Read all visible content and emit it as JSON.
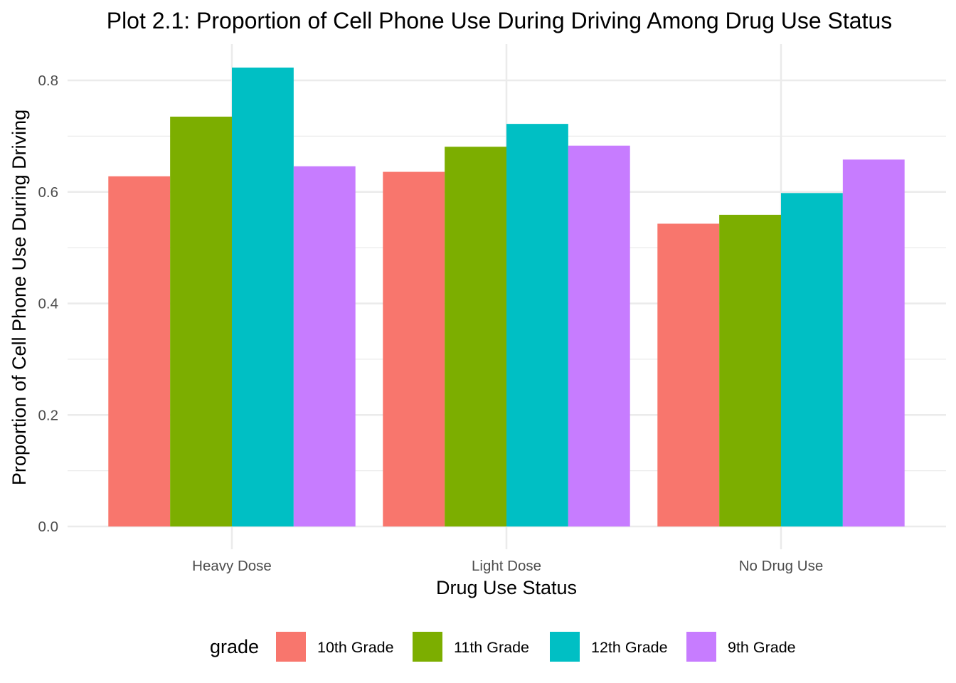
{
  "chart_data": {
    "type": "bar",
    "title": "Plot 2.1: Proportion of Cell Phone Use During Driving Among Drug Use Status",
    "xlabel": "Drug Use Status",
    "ylabel": "Proportion of Cell Phone Use During Driving",
    "categories": [
      "Heavy Dose",
      "Light Dose",
      "No Drug Use"
    ],
    "ylim": [
      0,
      0.86
    ],
    "yticks": [
      0.0,
      0.2,
      0.4,
      0.6,
      0.8
    ],
    "ytick_labels": [
      "0.0",
      "0.2",
      "0.4",
      "0.6",
      "0.8"
    ],
    "grid": true,
    "legend": {
      "title": "grade",
      "position": "bottom"
    },
    "series": [
      {
        "name": "10th Grade",
        "color": "#f8766d",
        "values": [
          0.628,
          0.636,
          0.543
        ]
      },
      {
        "name": "11th Grade",
        "color": "#7cae00",
        "values": [
          0.735,
          0.681,
          0.559
        ]
      },
      {
        "name": "12th Grade",
        "color": "#00bfc4",
        "values": [
          0.823,
          0.722,
          0.598
        ]
      },
      {
        "name": "9th Grade",
        "color": "#c77cff",
        "values": [
          0.646,
          0.683,
          0.658
        ]
      }
    ]
  }
}
